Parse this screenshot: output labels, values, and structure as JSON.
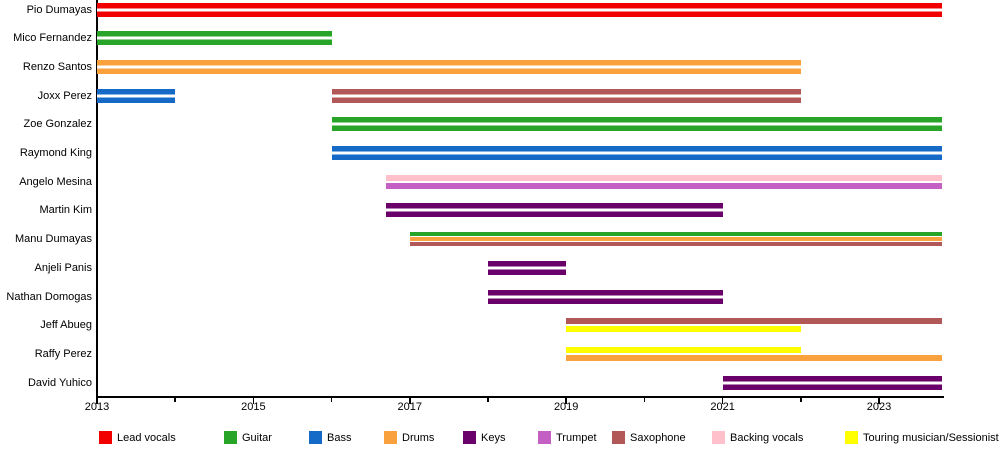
{
  "chart_data": {
    "type": "timeline",
    "x_axis": {
      "min": 2013,
      "max": 2023.8,
      "major_tick_years": [
        2013,
        2015,
        2017,
        2019,
        2021,
        2023
      ],
      "minor_tick_years": [
        2014,
        2016,
        2018,
        2020,
        2022
      ]
    },
    "colors": {
      "lead_vocals": "#f20000",
      "guitar": "#28a428",
      "bass": "#1569c7",
      "drums": "#f9a13d",
      "keys": "#6a006a",
      "trumpet": "#c45fc4",
      "saxophone": "#b25858",
      "backing_vocals": "#ffc0cb",
      "touring": "#ffff00"
    },
    "legend": [
      {
        "label": "Lead vocals",
        "color_key": "lead_vocals"
      },
      {
        "label": "Guitar",
        "color_key": "guitar"
      },
      {
        "label": "Bass",
        "color_key": "bass"
      },
      {
        "label": "Drums",
        "color_key": "drums"
      },
      {
        "label": "Keys",
        "color_key": "keys"
      },
      {
        "label": "Trumpet",
        "color_key": "trumpet"
      },
      {
        "label": "Saxophone",
        "color_key": "saxophone"
      },
      {
        "label": "Backing vocals",
        "color_key": "backing_vocals"
      },
      {
        "label": "Touring musician/Sessionist",
        "color_key": "touring"
      }
    ],
    "members": [
      {
        "name": "Pio Dumayas",
        "bars": [
          {
            "role": "Lead vocals",
            "color_key": "lead_vocals",
            "start": 2013,
            "end": 2023.8
          }
        ]
      },
      {
        "name": "Mico Fernandez",
        "bars": [
          {
            "role": "Guitar",
            "color_key": "guitar",
            "start": 2013,
            "end": 2016
          }
        ]
      },
      {
        "name": "Renzo Santos",
        "bars": [
          {
            "role": "Drums",
            "color_key": "drums",
            "start": 2013,
            "end": 2022
          }
        ]
      },
      {
        "name": "Joxx Perez",
        "bars": [
          {
            "role": "Bass",
            "color_key": "bass",
            "start": 2013,
            "end": 2014
          },
          {
            "role": "Saxophone",
            "color_key": "saxophone",
            "start": 2016,
            "end": 2022
          }
        ]
      },
      {
        "name": "Zoe Gonzalez",
        "bars": [
          {
            "role": "Guitar",
            "color_key": "guitar",
            "start": 2016,
            "end": 2023.8
          }
        ]
      },
      {
        "name": "Raymond King",
        "bars": [
          {
            "role": "Bass",
            "color_key": "bass",
            "start": 2016,
            "end": 2023.8
          }
        ]
      },
      {
        "name": "Angelo Mesina",
        "bars": [
          {
            "role": "Backing vocals",
            "color_key": "backing_vocals",
            "start": 2016.7,
            "end": 2023.8
          },
          {
            "role": "Trumpet",
            "color_key": "trumpet",
            "start": 2016.7,
            "end": 2023.8
          }
        ]
      },
      {
        "name": "Martin Kim",
        "bars": [
          {
            "role": "Keys",
            "color_key": "keys",
            "start": 2016.7,
            "end": 2021
          }
        ]
      },
      {
        "name": "Manu Dumayas",
        "bars": [
          {
            "role": "Guitar",
            "color_key": "guitar",
            "start": 2017,
            "end": 2023.8
          },
          {
            "role": "Drums",
            "color_key": "drums",
            "start": 2017,
            "end": 2023.8
          },
          {
            "role": "Saxophone",
            "color_key": "saxophone",
            "start": 2017,
            "end": 2023.8
          }
        ]
      },
      {
        "name": "Anjeli Panis",
        "bars": [
          {
            "role": "Keys",
            "color_key": "keys",
            "start": 2018,
            "end": 2019
          }
        ]
      },
      {
        "name": "Nathan Domogas",
        "bars": [
          {
            "role": "Keys",
            "color_key": "keys",
            "start": 2018,
            "end": 2021
          }
        ]
      },
      {
        "name": "Jeff Abueg",
        "bars": [
          {
            "role": "Saxophone",
            "color_key": "saxophone",
            "start": 2019,
            "end": 2023.8
          },
          {
            "role": "Touring musician/Sessionist",
            "color_key": "touring",
            "start": 2019,
            "end": 2022
          }
        ]
      },
      {
        "name": "Raffy Perez",
        "bars": [
          {
            "role": "Touring musician/Sessionist",
            "color_key": "touring",
            "start": 2019,
            "end": 2022
          },
          {
            "role": "Drums",
            "color_key": "drums",
            "start": 2019,
            "end": 2023.8
          }
        ]
      },
      {
        "name": "David Yuhico",
        "bars": [
          {
            "role": "Keys",
            "color_key": "keys",
            "start": 2021,
            "end": 2023.8
          }
        ]
      }
    ]
  }
}
